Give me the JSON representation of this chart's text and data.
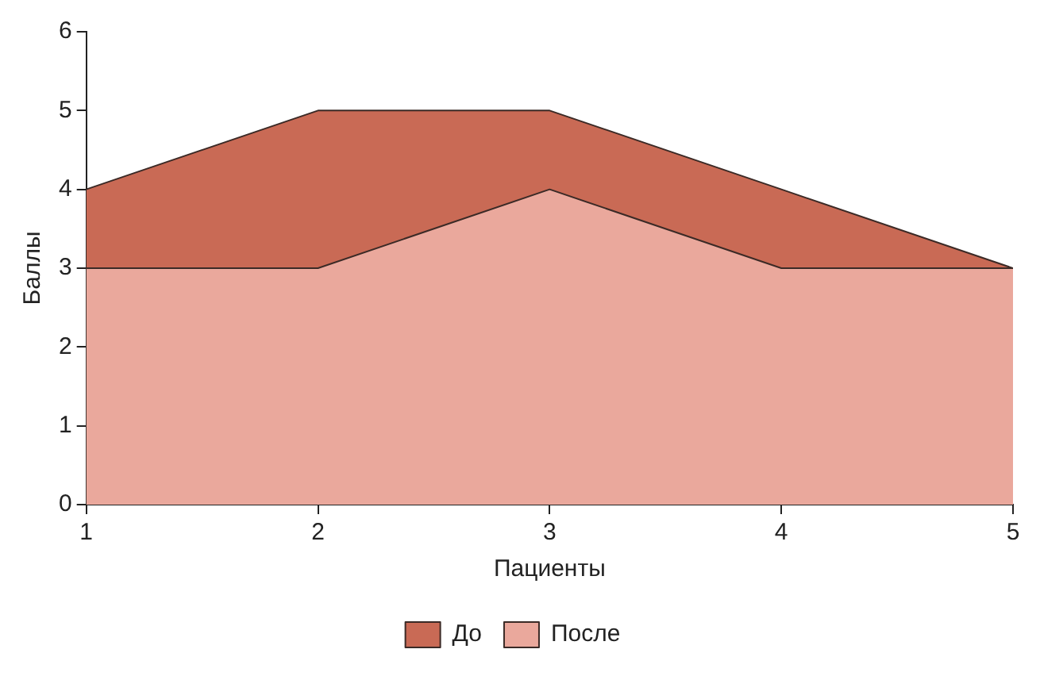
{
  "chart_data": {
    "type": "area",
    "xlabel": "Пациенты",
    "ylabel": "Баллы",
    "x": [
      1,
      2,
      3,
      4,
      5
    ],
    "series": [
      {
        "name": "До",
        "color": "#c96a55",
        "values": [
          4,
          5,
          5,
          4,
          3
        ]
      },
      {
        "name": "После",
        "color": "#eaa89c",
        "values": [
          3,
          3,
          4,
          3,
          3
        ]
      }
    ],
    "xlim": [
      1,
      5
    ],
    "xticks": [
      1,
      2,
      3,
      4,
      5
    ],
    "ylim": [
      0,
      6
    ],
    "yticks": [
      0,
      1,
      2,
      3,
      4,
      5,
      6
    ],
    "grid": false,
    "legend": "bottom",
    "marker": "none",
    "line_style": "solid"
  }
}
